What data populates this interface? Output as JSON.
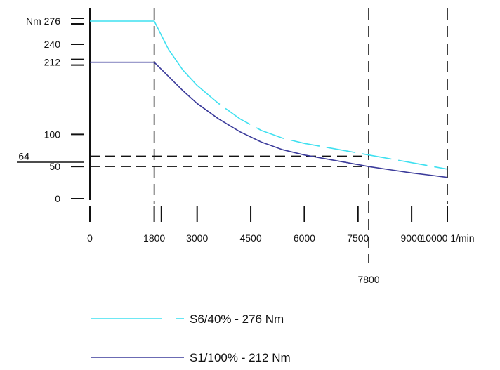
{
  "chart_data": {
    "type": "line",
    "x_unit": "1/min",
    "y_unit": "Nm",
    "xlim": [
      0,
      10000
    ],
    "ylim": [
      0,
      300
    ],
    "grid": false,
    "legend_position": "bottom-left",
    "x_ticks": [
      {
        "value": 0,
        "label": "0"
      },
      {
        "value": 1800,
        "label": "1800"
      },
      {
        "value": 3000,
        "label": "3000"
      },
      {
        "value": 4500,
        "label": "4500"
      },
      {
        "value": 6000,
        "label": "6000"
      },
      {
        "value": 7500,
        "label": "7500"
      },
      {
        "value": 9000,
        "label": "9000"
      },
      {
        "value": 10000,
        "label": "10000"
      }
    ],
    "x_minor_ticks": [
      2000
    ],
    "x_extra_label": {
      "value": 7800,
      "label": "7800"
    },
    "y_ticks": [
      {
        "value": 0,
        "label": "0"
      },
      {
        "value": 50,
        "label": "50"
      },
      {
        "value": 64,
        "label": "64"
      },
      {
        "value": 100,
        "label": "100"
      },
      {
        "value": 212,
        "label": "212"
      },
      {
        "value": 240,
        "label": "240"
      },
      {
        "value": 276,
        "label": "276"
      }
    ],
    "reference_lines": {
      "vertical": [
        1800,
        7800,
        10000
      ],
      "horizontal": [
        64,
        50
      ]
    },
    "series": [
      {
        "name": "S6/40%  - 276 Nm",
        "color": "#3fe0f0",
        "dashed_after_x": 3000,
        "x": [
          0,
          1800,
          2200,
          2600,
          3000,
          3600,
          4200,
          4800,
          5400,
          6000,
          6600,
          7200,
          7800,
          8400,
          9000,
          9600,
          10000
        ],
        "y": [
          276,
          276,
          232,
          200,
          176,
          148,
          124,
          106,
          94,
          86,
          80,
          74,
          68,
          62,
          56,
          50,
          46
        ]
      },
      {
        "name": "S1/100% - 212 Nm",
        "color": "#3a3a9a",
        "x": [
          0,
          1800,
          2200,
          2600,
          3000,
          3600,
          4200,
          4800,
          5400,
          6000,
          6600,
          7200,
          7800,
          8400,
          9000,
          9600,
          10000
        ],
        "y": [
          212,
          212,
          190,
          168,
          148,
          124,
          104,
          88,
          76,
          68,
          62,
          56,
          50,
          45,
          40,
          36,
          33
        ]
      }
    ]
  }
}
